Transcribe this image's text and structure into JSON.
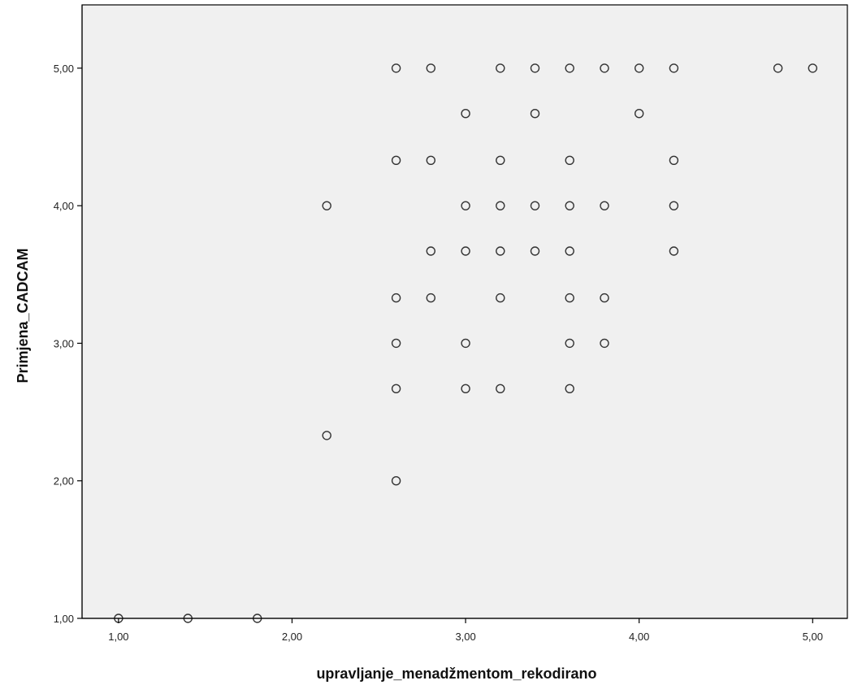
{
  "chart_data": {
    "type": "scatter",
    "title": "",
    "xlabel": "upravljanje_menadžmentom_rekodirano",
    "ylabel": "Primjena_CADCAM",
    "xlim": [
      0.79,
      5.2
    ],
    "ylim": [
      1.0,
      5.46
    ],
    "x_ticks": [
      1.0,
      2.0,
      3.0,
      4.0,
      5.0
    ],
    "x_tick_labels": [
      "1,00",
      "2,00",
      "3,00",
      "4,00",
      "5,00"
    ],
    "y_ticks": [
      1.0,
      2.0,
      3.0,
      4.0,
      5.0
    ],
    "y_tick_labels": [
      "1,00",
      "2,00",
      "3,00",
      "4,00",
      "5,00"
    ],
    "grid": false,
    "legend": "none",
    "colors": {
      "plot_background": "#f0f0f0",
      "marker_stroke": "#333333",
      "axis": "#000000"
    },
    "points": [
      {
        "x": 1.0,
        "y": 1.0
      },
      {
        "x": 1.4,
        "y": 1.0
      },
      {
        "x": 1.8,
        "y": 1.0
      },
      {
        "x": 2.2,
        "y": 4.0
      },
      {
        "x": 2.2,
        "y": 2.33
      },
      {
        "x": 2.6,
        "y": 5.0
      },
      {
        "x": 2.6,
        "y": 4.33
      },
      {
        "x": 2.6,
        "y": 3.33
      },
      {
        "x": 2.6,
        "y": 3.0
      },
      {
        "x": 2.6,
        "y": 2.67
      },
      {
        "x": 2.6,
        "y": 2.0
      },
      {
        "x": 2.8,
        "y": 5.0
      },
      {
        "x": 2.8,
        "y": 4.33
      },
      {
        "x": 2.8,
        "y": 3.67
      },
      {
        "x": 2.8,
        "y": 3.33
      },
      {
        "x": 3.0,
        "y": 4.67
      },
      {
        "x": 3.0,
        "y": 4.0
      },
      {
        "x": 3.0,
        "y": 3.67
      },
      {
        "x": 3.0,
        "y": 3.0
      },
      {
        "x": 3.0,
        "y": 2.67
      },
      {
        "x": 3.2,
        "y": 5.0
      },
      {
        "x": 3.2,
        "y": 4.33
      },
      {
        "x": 3.2,
        "y": 4.0
      },
      {
        "x": 3.2,
        "y": 3.67
      },
      {
        "x": 3.2,
        "y": 3.33
      },
      {
        "x": 3.2,
        "y": 2.67
      },
      {
        "x": 3.4,
        "y": 5.0
      },
      {
        "x": 3.4,
        "y": 4.67
      },
      {
        "x": 3.4,
        "y": 4.0
      },
      {
        "x": 3.4,
        "y": 3.67
      },
      {
        "x": 3.6,
        "y": 5.0
      },
      {
        "x": 3.6,
        "y": 4.33
      },
      {
        "x": 3.6,
        "y": 4.0
      },
      {
        "x": 3.6,
        "y": 3.67
      },
      {
        "x": 3.6,
        "y": 3.33
      },
      {
        "x": 3.6,
        "y": 3.0
      },
      {
        "x": 3.6,
        "y": 2.67
      },
      {
        "x": 3.8,
        "y": 5.0
      },
      {
        "x": 3.8,
        "y": 4.0
      },
      {
        "x": 3.8,
        "y": 3.33
      },
      {
        "x": 3.8,
        "y": 3.0
      },
      {
        "x": 4.0,
        "y": 5.0
      },
      {
        "x": 4.0,
        "y": 4.67
      },
      {
        "x": 4.2,
        "y": 5.0
      },
      {
        "x": 4.2,
        "y": 4.33
      },
      {
        "x": 4.2,
        "y": 4.0
      },
      {
        "x": 4.2,
        "y": 3.67
      },
      {
        "x": 4.8,
        "y": 5.0
      },
      {
        "x": 5.0,
        "y": 5.0
      }
    ]
  }
}
